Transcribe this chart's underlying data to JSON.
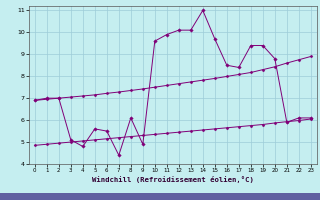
{
  "xlabel": "Windchill (Refroidissement éolien,°C)",
  "xlim": [
    -0.5,
    23.5
  ],
  "ylim": [
    4,
    11.2
  ],
  "yticks": [
    4,
    5,
    6,
    7,
    8,
    9,
    10,
    11
  ],
  "xticks": [
    0,
    1,
    2,
    3,
    4,
    5,
    6,
    7,
    8,
    9,
    10,
    11,
    12,
    13,
    14,
    15,
    16,
    17,
    18,
    19,
    20,
    21,
    22,
    23
  ],
  "bg_color": "#c5eef0",
  "grid_color": "#9eccd8",
  "line_color": "#800078",
  "series1_x": [
    0,
    1,
    2,
    3,
    4,
    5,
    6,
    7,
    8,
    9,
    10,
    11,
    12,
    13,
    14,
    15,
    16,
    17,
    18,
    19,
    20,
    21,
    22,
    23
  ],
  "series1_y": [
    6.9,
    7.0,
    7.0,
    5.1,
    4.8,
    5.6,
    5.5,
    4.4,
    6.1,
    4.9,
    9.6,
    9.9,
    10.1,
    10.1,
    11.0,
    9.7,
    8.5,
    8.4,
    9.4,
    9.4,
    8.8,
    5.9,
    6.1,
    6.1
  ],
  "series2_x": [
    0,
    1,
    2,
    3,
    4,
    5,
    6,
    7,
    8,
    9,
    10,
    11,
    12,
    13,
    14,
    15,
    16,
    17,
    18,
    19,
    20,
    21,
    22,
    23
  ],
  "series2_y": [
    6.9,
    6.95,
    7.0,
    7.05,
    7.1,
    7.15,
    7.22,
    7.28,
    7.35,
    7.42,
    7.5,
    7.58,
    7.66,
    7.74,
    7.82,
    7.9,
    7.99,
    8.08,
    8.17,
    8.3,
    8.43,
    8.6,
    8.75,
    8.9
  ],
  "series3_x": [
    0,
    1,
    2,
    3,
    4,
    5,
    6,
    7,
    8,
    9,
    10,
    11,
    12,
    13,
    14,
    15,
    16,
    17,
    18,
    19,
    20,
    21,
    22,
    23
  ],
  "series3_y": [
    4.85,
    4.9,
    4.95,
    5.0,
    5.05,
    5.1,
    5.15,
    5.2,
    5.25,
    5.3,
    5.35,
    5.4,
    5.45,
    5.5,
    5.55,
    5.6,
    5.65,
    5.7,
    5.75,
    5.8,
    5.87,
    5.93,
    5.98,
    6.05
  ]
}
